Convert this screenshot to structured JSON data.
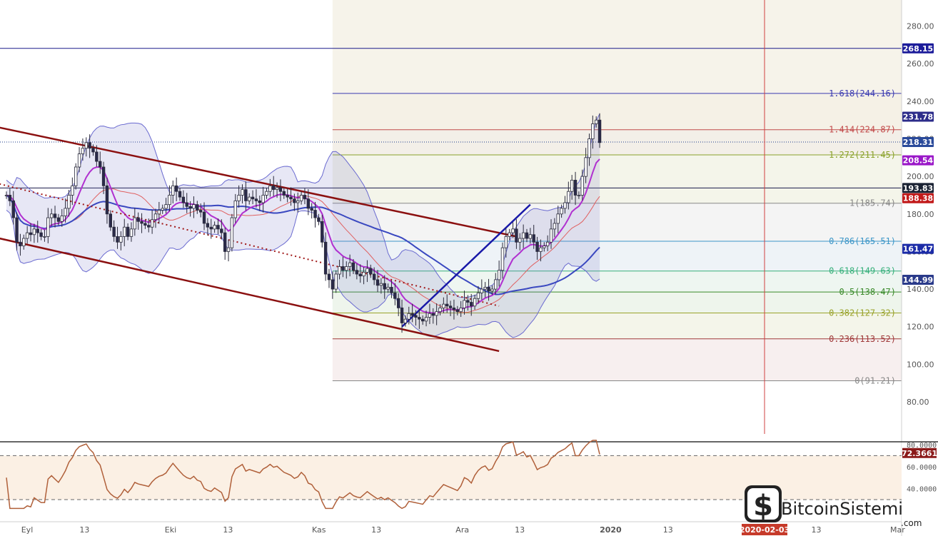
{
  "brand": {
    "name": "BitcoinSistemi",
    "suffix": ".com"
  },
  "chart_data": {
    "type": "candlestick",
    "price_axis": {
      "ylim": [
        65,
        300
      ],
      "ticks": [
        80,
        100,
        120,
        140,
        160,
        180,
        200,
        220,
        240,
        260,
        280
      ]
    },
    "x_axis": {
      "labels": [
        {
          "text": "Eyl",
          "day": 0
        },
        {
          "text": "13",
          "day": 12
        },
        {
          "text": "Eki",
          "day": 30
        },
        {
          "text": "13",
          "day": 42
        },
        {
          "text": "Kas",
          "day": 61
        },
        {
          "text": "13",
          "day": 73
        },
        {
          "text": "Ara",
          "day": 91
        },
        {
          "text": "13",
          "day": 103
        },
        {
          "text": "2020",
          "day": 122
        },
        {
          "text": "13",
          "day": 134
        },
        {
          "text": "13",
          "day": 165
        },
        {
          "text": "Mar",
          "day": 182
        }
      ],
      "highlight_date": "2020-02-03"
    },
    "fibonacci": {
      "levels": [
        {
          "ratio": "1.618",
          "price": 244.16,
          "label": "1.618(244.16)",
          "color": "#3a3ab0"
        },
        {
          "ratio": "1.414",
          "price": 224.87,
          "label": "1.414(224.87)",
          "color": "#c24a4a"
        },
        {
          "ratio": "1.272",
          "price": 211.45,
          "label": "1.272(211.45)",
          "color": "#8aa12a"
        },
        {
          "ratio": "1",
          "price": 185.74,
          "label": "1(185.74)",
          "color": "#888888"
        },
        {
          "ratio": "0.786",
          "price": 165.51,
          "label": "0.786(165.51)",
          "color": "#3c96c8"
        },
        {
          "ratio": "0.618",
          "price": 149.63,
          "label": "0.618(149.63)",
          "color": "#36b07a"
        },
        {
          "ratio": "0.5",
          "price": 138.47,
          "label": "0.5(138.47)",
          "color": "#3a8a2a"
        },
        {
          "ratio": "0.382",
          "price": 127.32,
          "label": "0.382(127.32)",
          "color": "#9aa22a"
        },
        {
          "ratio": "0.236",
          "price": 113.52,
          "label": "0.236(113.52)",
          "color": "#a03a3a"
        },
        {
          "ratio": "0",
          "price": 91.21,
          "label": "0(91.21)",
          "color": "#888888"
        }
      ]
    },
    "horizontal_lines": [
      {
        "price": 268.15,
        "color": "#1a1a8a"
      },
      {
        "price": 193.83,
        "color": "#1a1a4a"
      },
      {
        "price": 218.31,
        "color": "#1a3a8a",
        "dotted": true
      }
    ],
    "price_badges": [
      {
        "text": "268.15",
        "price": 268.15,
        "bg": "#1c1c9a"
      },
      {
        "text": "231.78",
        "price": 231.78,
        "bg": "#2c2c8a"
      },
      {
        "text": "218.31",
        "price": 218.31,
        "bg": "#2a4a9a"
      },
      {
        "text": "208.54",
        "price": 208.54,
        "bg": "#9a18c8"
      },
      {
        "text": "193.83",
        "price": 193.83,
        "bg": "#1a2233"
      },
      {
        "text": "188.38",
        "price": 188.38,
        "bg": "#c21a1a"
      },
      {
        "text": "161.47",
        "price": 161.47,
        "bg": "#1c2ca8"
      },
      {
        "text": "144.99",
        "price": 144.99,
        "bg": "#2a3a8a"
      }
    ],
    "candles_close": [
      190,
      187,
      178,
      165,
      163,
      167,
      170,
      169,
      172,
      170,
      168,
      168,
      178,
      180,
      178,
      176,
      179,
      183,
      190,
      195,
      205,
      212,
      215,
      218,
      215,
      213,
      208,
      205,
      195,
      180,
      173,
      168,
      165,
      168,
      173,
      168,
      172,
      178,
      176,
      175,
      174,
      173,
      177,
      180,
      182,
      183,
      185,
      190,
      195,
      192,
      189,
      186,
      184,
      183,
      185,
      182,
      181,
      175,
      173,
      172,
      174,
      172,
      170,
      160,
      162,
      178,
      187,
      190,
      193,
      187,
      189,
      188,
      187,
      186,
      190,
      192,
      195,
      193,
      194,
      192,
      190,
      189,
      188,
      186,
      187,
      190,
      188,
      183,
      182,
      178,
      176,
      165,
      148,
      145,
      140,
      148,
      152,
      150,
      152,
      154,
      150,
      148,
      147,
      149,
      151,
      148,
      145,
      142,
      143,
      140,
      141,
      138,
      135,
      130,
      122,
      124,
      127,
      126,
      125,
      124,
      123,
      125,
      127,
      126,
      128,
      130,
      132,
      131,
      130,
      129,
      128,
      130,
      134,
      133,
      131,
      135,
      138,
      140,
      141,
      139,
      140,
      145,
      150,
      162,
      168,
      170,
      172,
      165,
      167,
      170,
      167,
      169,
      165,
      160,
      162,
      163,
      165,
      172,
      175,
      180,
      183,
      186,
      192,
      198,
      190,
      190,
      200,
      210,
      220,
      228,
      230,
      218
    ],
    "indicators": {
      "bollinger_bands": true,
      "ma_periods": [
        20,
        50
      ],
      "ema_period": 10
    },
    "trendlines": [
      {
        "name": "channel-upper",
        "from": {
          "day": -2,
          "price": 226
        },
        "to": {
          "day": 147,
          "price": 168
        },
        "color": "#8b1010"
      },
      {
        "name": "channel-lower",
        "from": {
          "day": -2,
          "price": 167
        },
        "to": {
          "day": 142,
          "price": 107
        },
        "color": "#8b1010"
      },
      {
        "name": "channel-mid",
        "from": {
          "day": -2,
          "price": 196
        },
        "to": {
          "day": 142,
          "price": 131
        },
        "color": "#a01818",
        "dotted": true
      },
      {
        "name": "support-rising",
        "from": {
          "day": 114,
          "price": 120
        },
        "to": {
          "day": 151,
          "price": 185
        },
        "color": "#1818a8"
      }
    ],
    "rsi": {
      "levels": [
        {
          "text": "80.0000",
          "value": 80
        },
        {
          "text": "60.0000",
          "value": 60
        },
        {
          "text": "40.0000",
          "value": 40
        }
      ],
      "current_text": "72.3661",
      "current_value": 72.37,
      "overbought": 70,
      "oversold": 30
    }
  }
}
